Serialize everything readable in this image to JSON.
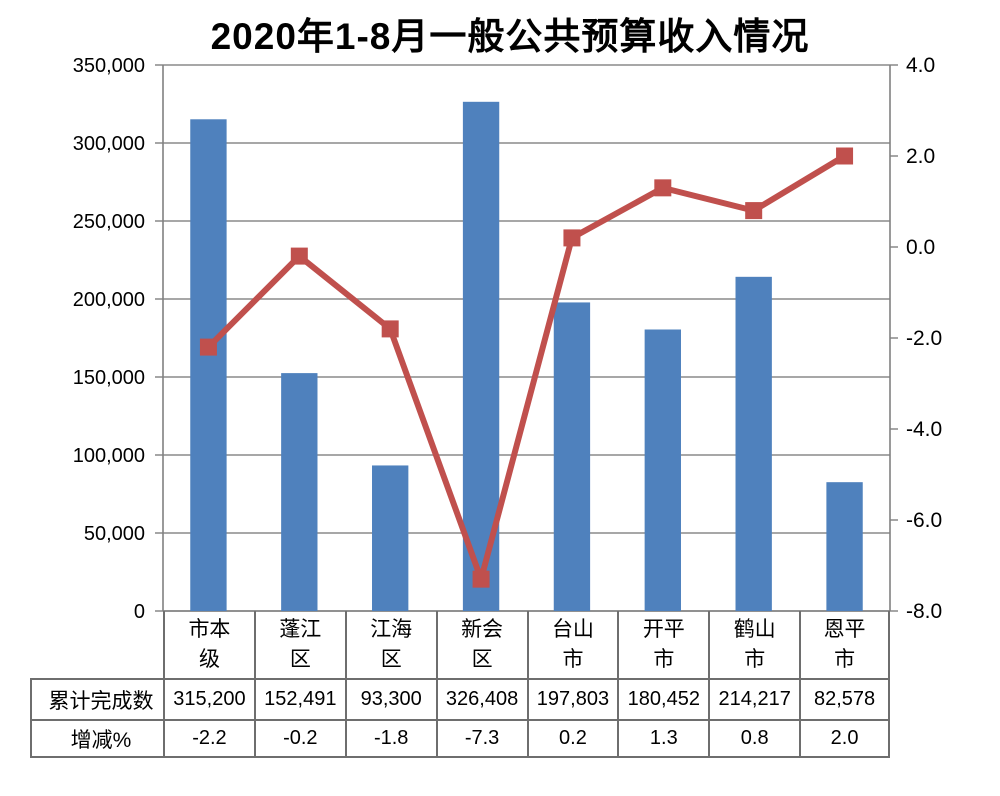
{
  "chart_data": {
    "type": "combo",
    "title": "2020年1-8月一般公共预算收入情况",
    "categories": [
      "市本级",
      "蓬江区",
      "江海区",
      "新会区",
      "台山市",
      "开平市",
      "鹤山市",
      "恩平市"
    ],
    "series": [
      {
        "name": "累计完成数",
        "type": "bar",
        "axis": "left",
        "color": "#4F81BD",
        "values": [
          315200,
          152491,
          93300,
          326408,
          197803,
          180452,
          214217,
          82578
        ],
        "labels": [
          "315,200",
          "152,491",
          "93,300",
          "326,408",
          "197,803",
          "180,452",
          "214,217",
          "82,578"
        ]
      },
      {
        "name": "增减%",
        "type": "line",
        "axis": "right",
        "color": "#C0504D",
        "values": [
          -2.2,
          -0.2,
          -1.8,
          -7.3,
          0.2,
          1.3,
          0.8,
          2.0
        ],
        "labels": [
          "-2.2",
          "-0.2",
          "-1.8",
          "-7.3",
          "0.2",
          "1.3",
          "0.8",
          "2.0"
        ]
      }
    ],
    "left_axis": {
      "min": 0,
      "max": 350000,
      "step": 50000,
      "tick_labels": [
        "0",
        "50,000",
        "100,000",
        "150,000",
        "200,000",
        "250,000",
        "300,000",
        "350,000"
      ]
    },
    "right_axis": {
      "min": -8,
      "max": 4,
      "step": 2,
      "tick_labels": [
        "-8.0",
        "-6.0",
        "-4.0",
        "-2.0",
        "0.0",
        "2.0",
        "4.0"
      ]
    },
    "grid": "horizontal",
    "legend": "none",
    "colors": {
      "bar": "#4F81BD",
      "line": "#C0504D",
      "gridline": "#8a8a8a",
      "axis": "#808080",
      "table_border": "#6e6e6e",
      "text": "#000000"
    }
  }
}
